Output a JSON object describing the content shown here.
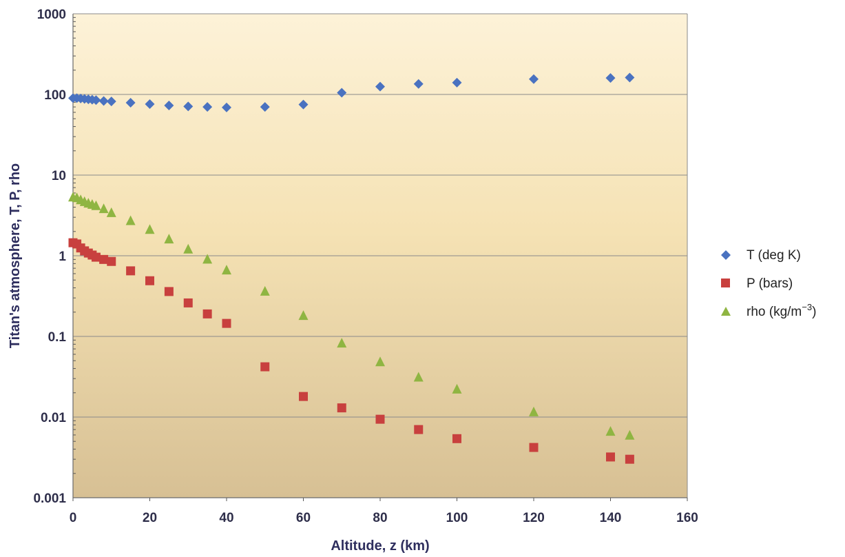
{
  "chart_data": {
    "type": "scatter",
    "title": "",
    "xlabel": "Altitude, z (km)",
    "ylabel": "Titan's atmosphere, T, P, rho",
    "xlim": [
      0,
      160
    ],
    "ylim": [
      0.001,
      1000
    ],
    "yscale": "log",
    "x_ticks": [
      "0",
      "20",
      "40",
      "60",
      "80",
      "100",
      "120",
      "140",
      "160"
    ],
    "y_ticks": [
      "0.001",
      "0.01",
      "0.1",
      "1",
      "10",
      "100",
      "1000"
    ],
    "grid": "horizontal",
    "legend_position": "right",
    "series": [
      {
        "name": "T (deg K)",
        "marker": "diamond",
        "color": "#4a72c0",
        "x": [
          0,
          1,
          2,
          3,
          4,
          5,
          6,
          8,
          10,
          15,
          20,
          25,
          30,
          35,
          40,
          50,
          60,
          70,
          80,
          90,
          100,
          120,
          140,
          145
        ],
        "y": [
          90,
          90,
          89,
          88,
          87,
          86,
          85,
          83,
          82,
          79,
          76,
          73,
          71,
          70,
          69,
          70,
          75,
          105,
          125,
          135,
          140,
          155,
          160,
          162
        ]
      },
      {
        "name": "P (bars)",
        "marker": "square",
        "color": "#c8403e",
        "x": [
          0,
          1,
          2,
          3,
          4,
          5,
          6,
          8,
          10,
          15,
          20,
          25,
          30,
          35,
          40,
          50,
          60,
          70,
          80,
          90,
          100,
          120,
          140,
          145
        ],
        "y": [
          1.45,
          1.4,
          1.25,
          1.15,
          1.08,
          1.02,
          0.96,
          0.9,
          0.85,
          0.65,
          0.49,
          0.36,
          0.26,
          0.19,
          0.145,
          0.042,
          0.018,
          0.013,
          0.0094,
          0.007,
          0.0054,
          0.0042,
          0.0032,
          0.003
        ]
      },
      {
        "name": "rho (kg/m−3)",
        "marker": "triangle",
        "color": "#8fb542",
        "x": [
          0,
          1,
          2,
          3,
          4,
          5,
          6,
          8,
          10,
          15,
          20,
          25,
          30,
          35,
          40,
          50,
          60,
          70,
          80,
          90,
          100,
          120,
          140,
          145
        ],
        "y": [
          5.3,
          5.2,
          4.9,
          4.65,
          4.45,
          4.3,
          4.15,
          3.8,
          3.4,
          2.7,
          2.1,
          1.6,
          1.2,
          0.9,
          0.66,
          0.36,
          0.18,
          0.082,
          0.048,
          0.031,
          0.022,
          0.0115,
          0.0066,
          0.0059
        ]
      }
    ]
  },
  "legend": {
    "items": [
      {
        "prefix": "T (deg K)",
        "sup": ""
      },
      {
        "prefix": "P (bars)",
        "sup": ""
      },
      {
        "prefix": "rho (kg/m",
        "sup": "−3",
        "suffix": ")"
      }
    ]
  }
}
